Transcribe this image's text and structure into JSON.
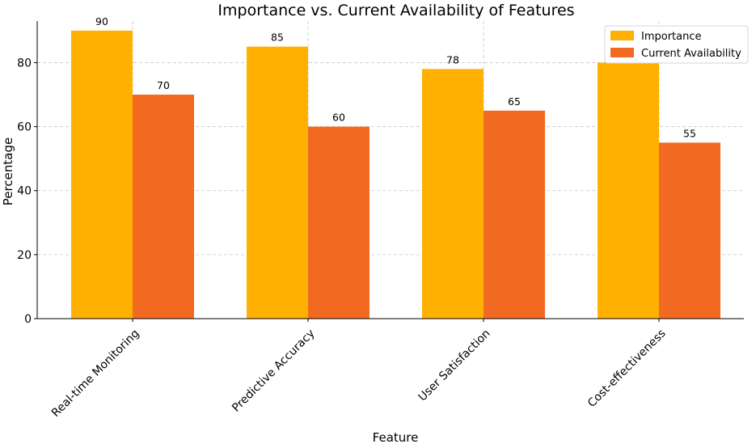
{
  "chart_data": {
    "type": "bar",
    "title": "Importance vs. Current Availability of Features",
    "xlabel": "Feature",
    "ylabel": "Percentage",
    "categories": [
      "Real-time Monitoring",
      "Predictive Accuracy",
      "User Satisfaction",
      "Cost-effectiveness"
    ],
    "series": [
      {
        "name": "Importance",
        "values": [
          90,
          85,
          78,
          80
        ],
        "color": "#FFB000"
      },
      {
        "name": "Current Availability",
        "values": [
          70,
          60,
          65,
          55
        ],
        "color": "#F26A22"
      }
    ],
    "data_labels": [
      [
        "90",
        "85",
        "78",
        "80"
      ],
      [
        "70",
        "60",
        "65",
        "55"
      ]
    ],
    "ylim": [
      0,
      90
    ],
    "yticks": [
      "0",
      "20",
      "40",
      "60",
      "80"
    ],
    "grid": true,
    "legend_position": "top-right"
  }
}
